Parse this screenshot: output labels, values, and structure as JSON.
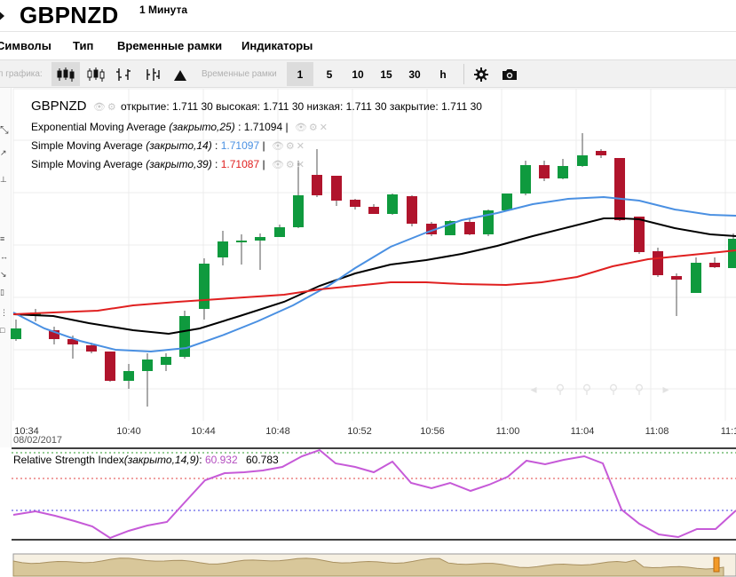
{
  "header": {
    "symbol": "GBPNZD",
    "period": "1 Минута"
  },
  "menu": {
    "items": [
      {
        "name": "menu-symbols",
        "label": "Символы",
        "x": 0
      },
      {
        "name": "menu-type",
        "label": "Тип",
        "x": 82
      },
      {
        "name": "menu-timeframes",
        "label": "Временные рамки",
        "x": 132
      },
      {
        "name": "menu-indicators",
        "label": "Индикаторы",
        "x": 272
      }
    ]
  },
  "toolbar": {
    "chart_type_label": "п графика:",
    "timeframes_label": "Временные рамки",
    "timeframes": [
      "1",
      "5",
      "10",
      "15",
      "30",
      "h"
    ],
    "selected_timeframe": "1"
  },
  "legend": {
    "symbol": "GBPNZD",
    "ohlc": "открытие: 1.711 30 высокая: 1.711 30 низкая: 1.711 30 закрытие: 1.711 30",
    "ema": {
      "name": "Exponential Moving Average",
      "params": "(закрыто,25)",
      "value": "1.71094",
      "color": "#000000"
    },
    "sma14": {
      "name": "Simple Moving Average",
      "params": "(закрыто,14)",
      "value": "1.71097",
      "color": "#4a90e2"
    },
    "sma39": {
      "name": "Simple Moving Average",
      "params": "(закрыто,39)",
      "value": "1.71087",
      "color": "#e02020"
    }
  },
  "rsi": {
    "name": "Relative Strength Index",
    "params": "(закрыто,14,9)",
    "value1": "60.932",
    "value1_color": "#b44fc0",
    "value2": "60.783"
  },
  "xaxis": {
    "ticks": [
      "10:34",
      "10:40",
      "10:44",
      "10:48",
      "10:52",
      "10:56",
      "11:00",
      "11:04",
      "11:08",
      "11:1"
    ],
    "date": "08/02/2017"
  },
  "colors": {
    "bull": "#0f9a3e",
    "bear": "#b0142c",
    "ema": "#000000",
    "sma14": "#4a90e2",
    "sma39": "#e02020",
    "rsi": "#c65ad8"
  },
  "icons": [
    "play-icon",
    "candles-icon",
    "hollow-candles-icon",
    "ohlc-bars-icon",
    "hlc-bars-icon",
    "mountain-icon",
    "settings-gear-icon",
    "camera-icon",
    "eye-icon",
    "close-icon",
    "pan-left-icon",
    "zoom-in-icon",
    "zoom-out-icon",
    "pan-right-icon"
  ]
}
